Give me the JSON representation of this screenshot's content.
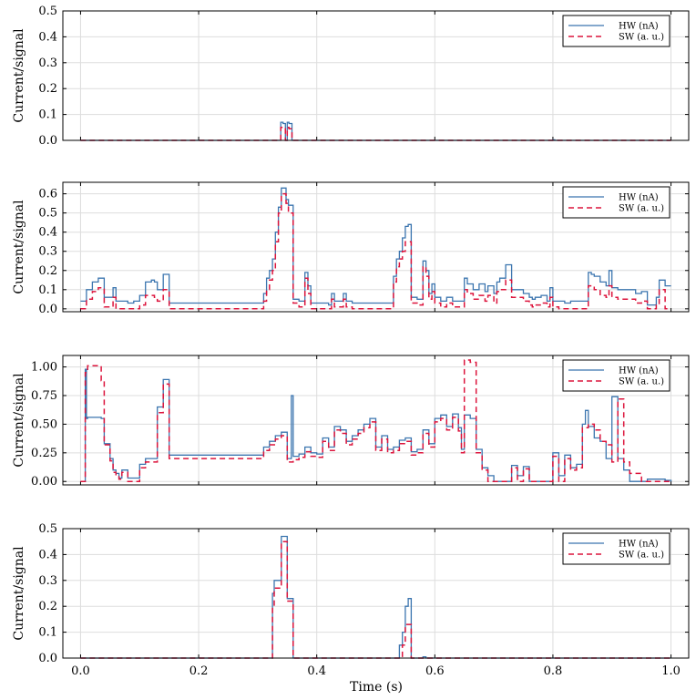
{
  "figure": {
    "xlabel": "Time (s)",
    "legend": [
      "HW (nA)",
      "SW (a. u.)"
    ]
  },
  "colors": {
    "hw": "#3b75af",
    "sw": "#dc143c",
    "grid": "#dddddd",
    "axis": "#000000"
  },
  "chart_data": [
    {
      "type": "line",
      "title": "",
      "xlabel": "",
      "ylabel": "Current/signal",
      "xlim": [
        -0.03,
        1.03
      ],
      "ylim": [
        0,
        0.5
      ],
      "yticks": [
        0.0,
        0.1,
        0.2,
        0.3,
        0.4,
        0.5
      ],
      "ytick_labels": [
        "0.0",
        "0.1",
        "0.2",
        "0.3",
        "0.4",
        "0.5"
      ],
      "xticks": [
        0.0,
        0.2,
        0.4,
        0.6,
        0.8,
        1.0
      ],
      "xtick_labels": [],
      "grid": true,
      "legend_position": "top-right",
      "series": [
        {
          "name": "HW (nA)",
          "style": "solid",
          "step": true,
          "x": [
            0.0,
            0.339,
            0.343,
            0.347,
            0.35,
            0.353,
            0.358,
            0.8,
            0.803,
            1.0
          ],
          "values": [
            0.0,
            0.07,
            0.065,
            0.0,
            0.07,
            0.065,
            0.0,
            0.002,
            0.0,
            0.0
          ]
        },
        {
          "name": "SW (a. u.)",
          "style": "dashed",
          "step": true,
          "x": [
            0.0,
            0.339,
            0.343,
            0.347,
            0.35,
            0.353,
            0.358,
            1.0
          ],
          "values": [
            0.0,
            0.05,
            0.045,
            0.0,
            0.05,
            0.045,
            0.0,
            0.0
          ]
        }
      ]
    },
    {
      "type": "line",
      "title": "",
      "xlabel": "",
      "ylabel": "Current/signal",
      "xlim": [
        -0.03,
        1.03
      ],
      "ylim": [
        -0.015,
        0.66
      ],
      "yticks": [
        0.0,
        0.1,
        0.2,
        0.3,
        0.4,
        0.5,
        0.6
      ],
      "ytick_labels": [
        "0.0",
        "0.1",
        "0.2",
        "0.3",
        "0.4",
        "0.5",
        "0.6"
      ],
      "xticks": [
        0.0,
        0.2,
        0.4,
        0.6,
        0.8,
        1.0
      ],
      "xtick_labels": [],
      "grid": true,
      "legend_position": "top-right",
      "series": [
        {
          "name": "HW (nA)",
          "style": "solid",
          "step": true,
          "x": [
            0.0,
            0.01,
            0.02,
            0.025,
            0.03,
            0.04,
            0.045,
            0.055,
            0.06,
            0.07,
            0.08,
            0.09,
            0.1,
            0.11,
            0.12,
            0.125,
            0.13,
            0.135,
            0.14,
            0.15,
            0.2,
            0.3,
            0.31,
            0.315,
            0.32,
            0.325,
            0.33,
            0.335,
            0.34,
            0.348,
            0.352,
            0.36,
            0.37,
            0.38,
            0.385,
            0.39,
            0.42,
            0.425,
            0.43,
            0.44,
            0.445,
            0.45,
            0.46,
            0.5,
            0.52,
            0.53,
            0.535,
            0.54,
            0.545,
            0.55,
            0.555,
            0.56,
            0.57,
            0.58,
            0.585,
            0.59,
            0.595,
            0.6,
            0.61,
            0.62,
            0.625,
            0.63,
            0.64,
            0.65,
            0.655,
            0.665,
            0.675,
            0.685,
            0.69,
            0.7,
            0.705,
            0.71,
            0.715,
            0.72,
            0.73,
            0.74,
            0.75,
            0.76,
            0.765,
            0.77,
            0.78,
            0.79,
            0.795,
            0.8,
            0.81,
            0.82,
            0.83,
            0.84,
            0.86,
            0.865,
            0.87,
            0.88,
            0.89,
            0.895,
            0.9,
            0.905,
            0.91,
            0.93,
            0.94,
            0.95,
            0.96,
            0.97,
            0.975,
            0.98,
            0.99,
            1.0
          ],
          "values": [
            0.04,
            0.1,
            0.14,
            0.14,
            0.16,
            0.06,
            0.06,
            0.11,
            0.04,
            0.04,
            0.03,
            0.04,
            0.07,
            0.14,
            0.15,
            0.14,
            0.1,
            0.1,
            0.18,
            0.03,
            0.03,
            0.03,
            0.08,
            0.16,
            0.2,
            0.26,
            0.4,
            0.53,
            0.63,
            0.57,
            0.54,
            0.05,
            0.04,
            0.19,
            0.12,
            0.03,
            0.02,
            0.08,
            0.04,
            0.04,
            0.08,
            0.04,
            0.03,
            0.03,
            0.03,
            0.17,
            0.26,
            0.3,
            0.37,
            0.43,
            0.44,
            0.06,
            0.05,
            0.25,
            0.2,
            0.08,
            0.13,
            0.06,
            0.04,
            0.06,
            0.06,
            0.04,
            0.04,
            0.16,
            0.13,
            0.1,
            0.13,
            0.09,
            0.12,
            0.08,
            0.14,
            0.16,
            0.16,
            0.23,
            0.1,
            0.1,
            0.08,
            0.06,
            0.05,
            0.06,
            0.07,
            0.04,
            0.11,
            0.04,
            0.04,
            0.03,
            0.04,
            0.04,
            0.19,
            0.18,
            0.17,
            0.14,
            0.12,
            0.2,
            0.11,
            0.11,
            0.1,
            0.1,
            0.08,
            0.09,
            0.02,
            0.02,
            0.06,
            0.15,
            0.12,
            0.12
          ]
        },
        {
          "name": "SW (a. u.)",
          "style": "dashed",
          "step": true,
          "x": [
            0.0,
            0.01,
            0.02,
            0.025,
            0.03,
            0.04,
            0.045,
            0.055,
            0.06,
            0.07,
            0.08,
            0.1,
            0.11,
            0.12,
            0.125,
            0.13,
            0.135,
            0.14,
            0.15,
            0.2,
            0.3,
            0.31,
            0.315,
            0.32,
            0.325,
            0.33,
            0.335,
            0.34,
            0.348,
            0.352,
            0.36,
            0.37,
            0.38,
            0.385,
            0.39,
            0.42,
            0.425,
            0.43,
            0.44,
            0.445,
            0.45,
            0.46,
            0.5,
            0.52,
            0.53,
            0.535,
            0.54,
            0.545,
            0.55,
            0.555,
            0.56,
            0.57,
            0.58,
            0.585,
            0.59,
            0.595,
            0.6,
            0.61,
            0.62,
            0.625,
            0.63,
            0.64,
            0.65,
            0.655,
            0.665,
            0.675,
            0.685,
            0.69,
            0.7,
            0.705,
            0.71,
            0.715,
            0.72,
            0.73,
            0.74,
            0.75,
            0.76,
            0.765,
            0.77,
            0.78,
            0.79,
            0.795,
            0.8,
            0.81,
            0.82,
            0.83,
            0.84,
            0.86,
            0.865,
            0.87,
            0.88,
            0.89,
            0.895,
            0.9,
            0.905,
            0.91,
            0.93,
            0.94,
            0.95,
            0.96,
            0.97,
            0.975,
            0.98,
            0.99,
            1.0
          ],
          "values": [
            0.0,
            0.05,
            0.09,
            0.09,
            0.11,
            0.01,
            0.01,
            0.06,
            0.0,
            0.0,
            0.0,
            0.02,
            0.07,
            0.07,
            0.06,
            0.04,
            0.04,
            0.1,
            0.0,
            0.0,
            0.0,
            0.04,
            0.1,
            0.15,
            0.2,
            0.35,
            0.5,
            0.6,
            0.55,
            0.5,
            0.03,
            0.01,
            0.16,
            0.08,
            0.0,
            0.0,
            0.05,
            0.01,
            0.01,
            0.05,
            0.01,
            0.0,
            0.0,
            0.0,
            0.14,
            0.22,
            0.26,
            0.3,
            0.35,
            0.35,
            0.03,
            0.02,
            0.22,
            0.17,
            0.05,
            0.09,
            0.03,
            0.01,
            0.03,
            0.03,
            0.01,
            0.01,
            0.1,
            0.08,
            0.05,
            0.07,
            0.04,
            0.07,
            0.03,
            0.09,
            0.1,
            0.1,
            0.15,
            0.06,
            0.06,
            0.04,
            0.02,
            0.01,
            0.02,
            0.03,
            0.01,
            0.06,
            0.01,
            0.0,
            0.0,
            0.0,
            0.0,
            0.12,
            0.12,
            0.1,
            0.07,
            0.06,
            0.12,
            0.06,
            0.06,
            0.05,
            0.05,
            0.03,
            0.04,
            0.0,
            0.0,
            0.02,
            0.1,
            0.0,
            0.0
          ]
        }
      ]
    },
    {
      "type": "line",
      "title": "",
      "xlabel": "",
      "ylabel": "Current/signal",
      "xlim": [
        -0.03,
        1.03
      ],
      "ylim": [
        -0.03,
        1.1
      ],
      "yticks": [
        0.0,
        0.25,
        0.5,
        0.75,
        1.0
      ],
      "ytick_labels": [
        "0.00",
        "0.25",
        "0.50",
        "0.75",
        "1.00"
      ],
      "xticks": [
        0.0,
        0.2,
        0.4,
        0.6,
        0.8,
        1.0
      ],
      "xtick_labels": [],
      "grid": true,
      "legend_position": "top-right",
      "series": [
        {
          "name": "HW (nA)",
          "style": "solid",
          "step": true,
          "x": [
            0.0,
            0.008,
            0.01,
            0.012,
            0.035,
            0.04,
            0.05,
            0.055,
            0.06,
            0.065,
            0.07,
            0.08,
            0.09,
            0.1,
            0.11,
            0.13,
            0.13,
            0.14,
            0.15,
            0.2,
            0.3,
            0.31,
            0.32,
            0.33,
            0.34,
            0.35,
            0.355,
            0.357,
            0.36,
            0.37,
            0.38,
            0.39,
            0.4,
            0.41,
            0.42,
            0.43,
            0.44,
            0.45,
            0.46,
            0.47,
            0.48,
            0.49,
            0.5,
            0.51,
            0.52,
            0.53,
            0.54,
            0.55,
            0.56,
            0.57,
            0.58,
            0.59,
            0.6,
            0.61,
            0.62,
            0.63,
            0.64,
            0.645,
            0.65,
            0.66,
            0.67,
            0.68,
            0.69,
            0.7,
            0.72,
            0.73,
            0.74,
            0.75,
            0.76,
            0.77,
            0.8,
            0.81,
            0.82,
            0.83,
            0.84,
            0.85,
            0.855,
            0.86,
            0.87,
            0.88,
            0.89,
            0.9,
            0.91,
            0.92,
            0.93,
            0.95,
            0.96,
            0.97,
            0.99,
            1.0
          ],
          "values": [
            0.0,
            0.98,
            0.55,
            0.56,
            0.55,
            0.33,
            0.2,
            0.1,
            0.07,
            0.03,
            0.1,
            0.03,
            0.03,
            0.15,
            0.2,
            0.65,
            0.65,
            0.89,
            0.23,
            0.23,
            0.23,
            0.3,
            0.35,
            0.4,
            0.43,
            0.2,
            0.2,
            0.75,
            0.22,
            0.24,
            0.3,
            0.25,
            0.24,
            0.38,
            0.3,
            0.48,
            0.45,
            0.35,
            0.4,
            0.45,
            0.5,
            0.55,
            0.3,
            0.4,
            0.28,
            0.3,
            0.36,
            0.38,
            0.26,
            0.28,
            0.45,
            0.33,
            0.55,
            0.58,
            0.48,
            0.59,
            0.47,
            0.28,
            0.58,
            0.55,
            0.28,
            0.12,
            0.05,
            0.0,
            0.0,
            0.14,
            0.05,
            0.13,
            0.0,
            0.0,
            0.25,
            0.05,
            0.23,
            0.12,
            0.15,
            0.5,
            0.62,
            0.48,
            0.38,
            0.35,
            0.2,
            0.74,
            0.2,
            0.1,
            0.0,
            0.0,
            0.02,
            0.02,
            0.01,
            0.0
          ]
        },
        {
          "name": "SW (a. u.)",
          "style": "dashed",
          "step": true,
          "x": [
            0.0,
            0.008,
            0.012,
            0.025,
            0.035,
            0.04,
            0.05,
            0.055,
            0.06,
            0.065,
            0.07,
            0.08,
            0.09,
            0.1,
            0.11,
            0.13,
            0.14,
            0.15,
            0.2,
            0.3,
            0.31,
            0.32,
            0.33,
            0.34,
            0.35,
            0.36,
            0.37,
            0.38,
            0.39,
            0.4,
            0.41,
            0.42,
            0.43,
            0.44,
            0.45,
            0.46,
            0.47,
            0.48,
            0.49,
            0.5,
            0.51,
            0.52,
            0.53,
            0.54,
            0.55,
            0.56,
            0.57,
            0.58,
            0.59,
            0.6,
            0.61,
            0.62,
            0.63,
            0.64,
            0.645,
            0.65,
            0.66,
            0.67,
            0.68,
            0.69,
            0.7,
            0.72,
            0.73,
            0.74,
            0.75,
            0.76,
            0.77,
            0.8,
            0.81,
            0.82,
            0.83,
            0.84,
            0.85,
            0.86,
            0.87,
            0.88,
            0.89,
            0.9,
            0.91,
            0.92,
            0.93,
            0.95,
            0.96,
            0.97,
            0.99,
            1.0
          ],
          "values": [
            0.0,
            0.95,
            1.01,
            1.01,
            0.88,
            0.32,
            0.18,
            0.08,
            0.05,
            0.02,
            0.08,
            0.0,
            0.0,
            0.12,
            0.17,
            0.6,
            0.85,
            0.2,
            0.2,
            0.2,
            0.27,
            0.32,
            0.37,
            0.4,
            0.17,
            0.19,
            0.21,
            0.26,
            0.22,
            0.21,
            0.35,
            0.27,
            0.45,
            0.42,
            0.32,
            0.37,
            0.42,
            0.47,
            0.52,
            0.27,
            0.37,
            0.25,
            0.27,
            0.33,
            0.35,
            0.23,
            0.25,
            0.42,
            0.3,
            0.52,
            0.55,
            0.45,
            0.56,
            0.44,
            0.25,
            1.06,
            1.04,
            0.25,
            0.1,
            0.0,
            0.0,
            0.0,
            0.12,
            0.0,
            0.11,
            0.0,
            0.0,
            0.22,
            0.0,
            0.2,
            0.1,
            0.12,
            0.47,
            0.5,
            0.45,
            0.35,
            0.32,
            0.17,
            0.72,
            0.17,
            0.07,
            0.0,
            0.0,
            0.0,
            0.0,
            0.0
          ]
        }
      ]
    },
    {
      "type": "line",
      "title": "",
      "xlabel": "Time (s)",
      "ylabel": "Current/signal",
      "xlim": [
        -0.03,
        1.03
      ],
      "ylim": [
        0,
        0.5
      ],
      "yticks": [
        0.0,
        0.1,
        0.2,
        0.3,
        0.4,
        0.5
      ],
      "ytick_labels": [
        "0.0",
        "0.1",
        "0.2",
        "0.3",
        "0.4",
        "0.5"
      ],
      "xticks": [
        0.0,
        0.2,
        0.4,
        0.6,
        0.8,
        1.0
      ],
      "xtick_labels": [
        "0.0",
        "0.2",
        "0.4",
        "0.6",
        "0.8",
        "1.0"
      ],
      "grid": true,
      "legend_position": "top-right",
      "series": [
        {
          "name": "HW (nA)",
          "style": "solid",
          "step": true,
          "x": [
            0.0,
            0.325,
            0.328,
            0.335,
            0.34,
            0.35,
            0.36,
            0.54,
            0.545,
            0.55,
            0.555,
            0.56,
            0.58,
            0.585,
            1.0
          ],
          "values": [
            0.0,
            0.25,
            0.3,
            0.3,
            0.47,
            0.23,
            0.0,
            0.05,
            0.1,
            0.2,
            0.23,
            0.0,
            0.005,
            0.0,
            0.0
          ]
        },
        {
          "name": "SW (a. u.)",
          "style": "dashed",
          "step": true,
          "x": [
            0.0,
            0.325,
            0.328,
            0.335,
            0.34,
            0.35,
            0.36,
            0.545,
            0.55,
            0.555,
            0.56,
            1.0
          ],
          "values": [
            0.0,
            0.2,
            0.27,
            0.27,
            0.45,
            0.22,
            0.0,
            0.05,
            0.13,
            0.13,
            0.0,
            0.0
          ]
        }
      ]
    }
  ]
}
